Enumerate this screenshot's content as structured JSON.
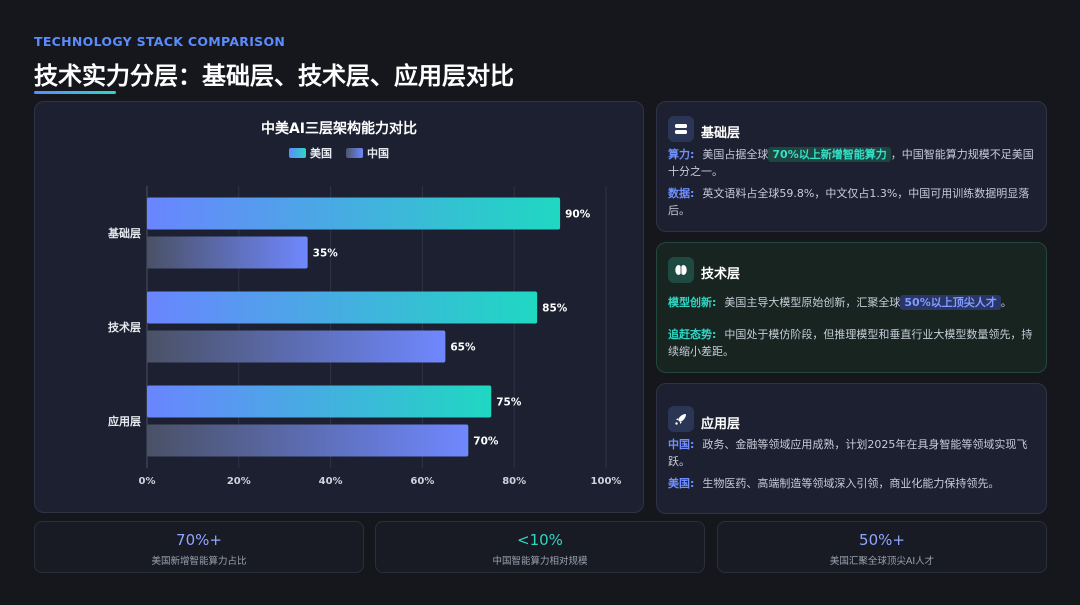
{
  "header": {
    "eyebrow": "TECHNOLOGY STACK COMPARISON",
    "title": "技术实力分层：基础层、技术层、应用层对比"
  },
  "chart_data": {
    "type": "bar",
    "orientation": "horizontal",
    "title": "中美AI三层架构能力对比",
    "categories": [
      "基础层",
      "技术层",
      "应用层"
    ],
    "series": [
      {
        "name": "美国",
        "values": [
          90,
          85,
          75
        ],
        "color": "#5b8cff-#2fd6c4"
      },
      {
        "name": "中国",
        "values": [
          35,
          65,
          70
        ],
        "color": "#4d556b-#6f88ff"
      }
    ],
    "value_labels": {
      "美国": [
        "90%",
        "85%",
        "75%"
      ],
      "中国": [
        "35%",
        "65%",
        "70%"
      ]
    },
    "xlim": [
      0,
      100
    ],
    "xticks": [
      "0%",
      "20%",
      "40%",
      "60%",
      "80%",
      "100%"
    ],
    "grid": true,
    "legend": "top-center"
  },
  "cards": [
    {
      "heading": "基础层",
      "icon": "server-icon",
      "lines": [
        {
          "label": "算力:",
          "pre": "美国占据全球",
          "highlight": "70%以上新增智能算力",
          "post": "，中国智能算力规模不足美国十分之一。"
        },
        {
          "label": "数据:",
          "pre": "英文语料占全球59.8%，中文仅占1.3%，中国可用训练数据明显落后。",
          "highlight": "",
          "post": ""
        }
      ]
    },
    {
      "heading": "技术层",
      "icon": "brain-icon",
      "lines": [
        {
          "label": "模型创新:",
          "pre": "美国主导大模型原始创新，汇聚全球",
          "highlight": "50%以上顶尖人才",
          "post": "。"
        },
        {
          "label": "追赶态势:",
          "pre": "中国处于模仿阶段，但推理模型和垂直行业大模型数量领先，持续缩小差距。",
          "highlight": "",
          "post": ""
        }
      ]
    },
    {
      "heading": "应用层",
      "icon": "rocket-icon",
      "lines": [
        {
          "label": "中国:",
          "pre": "政务、金融等领域应用成熟，计划2025年在具身智能等领域实现飞跃。",
          "highlight": "",
          "post": ""
        },
        {
          "label": "美国:",
          "pre": "生物医药、高端制造等领域深入引领，商业化能力保持领先。",
          "highlight": "",
          "post": ""
        }
      ]
    }
  ],
  "stats": [
    {
      "value": "70%+",
      "label": "美国新增智能算力占比",
      "color": "#8fa6ff"
    },
    {
      "value": "<10%",
      "label": "中国智能算力相对规模",
      "color": "#2fd6c4"
    },
    {
      "value": "50%+",
      "label": "美国汇聚全球顶尖AI人才",
      "color": "#8fa6ff"
    }
  ],
  "colors": {
    "accent_blue": "#5b8cff",
    "accent_teal": "#2fd6c4",
    "background": "#15171c"
  }
}
